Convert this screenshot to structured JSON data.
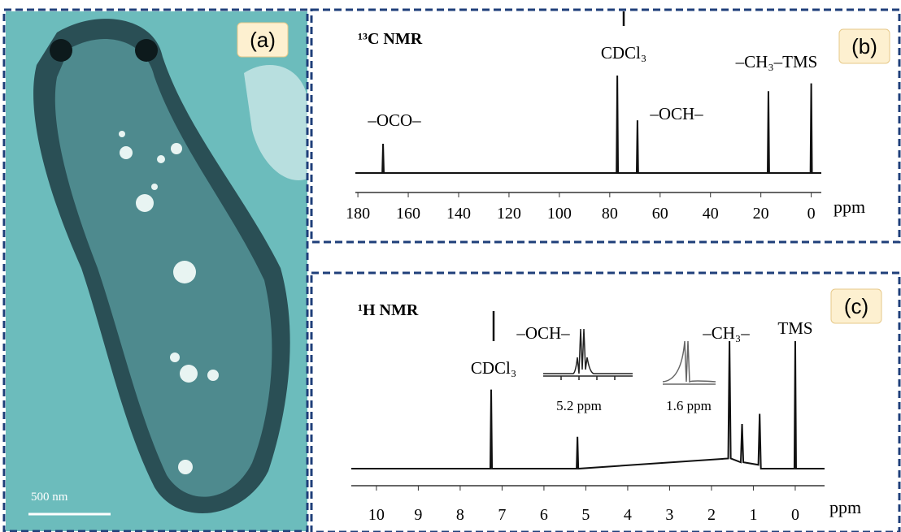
{
  "image_panel": {
    "label": "(a)",
    "scale_bar": "500 nm"
  },
  "chart_data": [
    {
      "type": "line",
      "label": "(b)",
      "title": "¹³C NMR",
      "x_label": "ppm",
      "annotations": [
        "–OCO–",
        "CDCl₃",
        "–OCH–",
        "–CH₃–TMS"
      ],
      "x": [
        181,
        170.3,
        170,
        169.7,
        77.3,
        77,
        76.7,
        69.3,
        69,
        68.7,
        17.3,
        17,
        16.7,
        0.3,
        0,
        -0.3,
        -4
      ],
      "values": [
        0,
        0,
        30,
        0,
        0,
        100,
        0,
        0,
        54,
        0,
        0,
        84,
        0,
        0,
        92,
        0,
        0
      ],
      "color": "#111111",
      "xlim": [
        181,
        -4
      ],
      "xticks": [
        180,
        160,
        140,
        120,
        100,
        80,
        60,
        40,
        20,
        0
      ],
      "ylim": [
        0,
        100
      ]
    },
    {
      "type": "line",
      "label": "(c)",
      "title": "¹H NMR",
      "x_label": "ppm",
      "annotations": [
        "CDCl₃",
        "–OCH–",
        "–CH₃–",
        "TMS"
      ],
      "insets": [
        "5.2 ppm",
        "1.6 ppm"
      ],
      "x": [
        10.6,
        7.28,
        7.26,
        7.24,
        5.22,
        5.2,
        5.18,
        1.6,
        1.57,
        1.54,
        1.3,
        1.27,
        1.24,
        0.88,
        0.85,
        0.82,
        0.02,
        0,
        -0.02,
        -0.7
      ],
      "values": [
        0,
        0,
        62,
        0,
        0,
        25,
        0,
        8,
        100,
        8,
        5,
        35,
        5,
        3,
        43,
        0,
        0,
        100,
        0,
        0
      ],
      "color": "#111111",
      "xlim": [
        10.6,
        -0.7
      ],
      "xticks": [
        10,
        9,
        8,
        7,
        6,
        5,
        4,
        3,
        2,
        1,
        0
      ],
      "ylim": [
        0,
        100
      ]
    }
  ]
}
